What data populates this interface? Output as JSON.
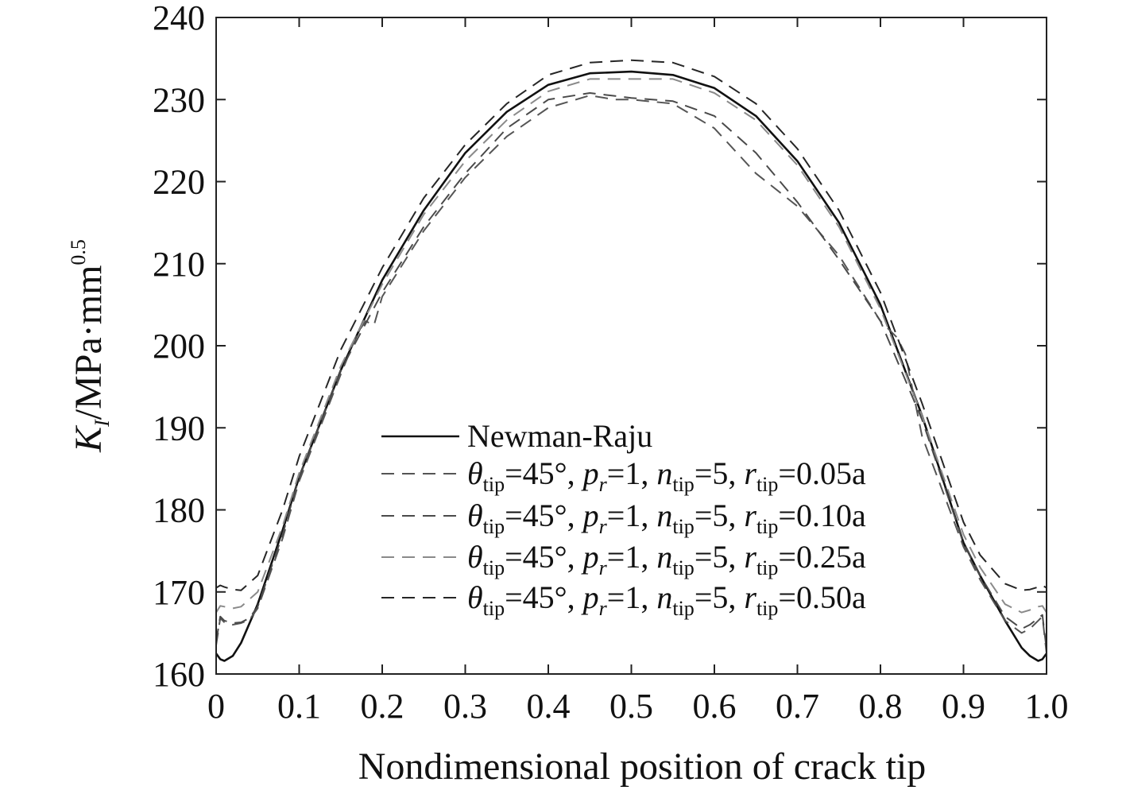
{
  "chart_data": {
    "type": "line",
    "xlabel": "Nondimensional position of crack tip",
    "ylabel": {
      "base": "K",
      "sub": "I",
      "rest": "/MPa·mm",
      "sup": "0.5"
    },
    "xlim": [
      0,
      1.0
    ],
    "ylim": [
      160,
      240
    ],
    "xticks": [
      0,
      0.1,
      0.2,
      0.3,
      0.4,
      0.5,
      0.6,
      0.7,
      0.8,
      0.9,
      1.0
    ],
    "xtick_labels": [
      "0",
      "0.1",
      "0.2",
      "0.3",
      "0.4",
      "0.5",
      "0.6",
      "0.7",
      "0.8",
      "0.9",
      "1.0"
    ],
    "yticks": [
      160,
      170,
      180,
      190,
      200,
      210,
      220,
      230,
      240
    ],
    "ytick_labels": [
      "160",
      "170",
      "180",
      "190",
      "200",
      "210",
      "220",
      "230",
      "240"
    ],
    "grid": false,
    "legend_position": "lower-center",
    "legend": [
      {
        "text": "Newman-Raju"
      },
      {
        "theta": "θ",
        "theta_sub": "tip",
        "eq1": "=45°, ",
        "p": "p",
        "p_sub": "r",
        "eq2": "=1, ",
        "n": "n",
        "n_sub": "tip",
        "eq3": "=5, ",
        "r": "r",
        "r_sub": "tip",
        "eq4": "=0.05a"
      },
      {
        "theta": "θ",
        "theta_sub": "tip",
        "eq1": "=45°, ",
        "p": "p",
        "p_sub": "r",
        "eq2": "=1, ",
        "n": "n",
        "n_sub": "tip",
        "eq3": "=5, ",
        "r": "r",
        "r_sub": "tip",
        "eq4": "=0.10a"
      },
      {
        "theta": "θ",
        "theta_sub": "tip",
        "eq1": "=45°, ",
        "p": "p",
        "p_sub": "r",
        "eq2": "=1, ",
        "n": "n",
        "n_sub": "tip",
        "eq3": "=5, ",
        "r": "r",
        "r_sub": "tip",
        "eq4": "=0.25a"
      },
      {
        "theta": "θ",
        "theta_sub": "tip",
        "eq1": "=45°, ",
        "p": "p",
        "p_sub": "r",
        "eq2": "=1, ",
        "n": "n",
        "n_sub": "tip",
        "eq3": "=5, ",
        "r": "r",
        "r_sub": "tip",
        "eq4": "=0.50a"
      }
    ],
    "series": [
      {
        "name": "Newman-Raju",
        "color": "#111111",
        "style": "solid",
        "x": [
          0,
          0.005,
          0.01,
          0.02,
          0.03,
          0.05,
          0.08,
          0.1,
          0.15,
          0.2,
          0.25,
          0.3,
          0.35,
          0.4,
          0.45,
          0.5,
          0.55,
          0.6,
          0.65,
          0.7,
          0.75,
          0.8,
          0.85,
          0.9,
          0.92,
          0.95,
          0.97,
          0.98,
          0.99,
          0.995,
          1.0
        ],
        "y": [
          162.5,
          161.8,
          161.6,
          162.2,
          163.8,
          168.5,
          177.5,
          184,
          197,
          208,
          216.5,
          223.5,
          228.5,
          231.8,
          233.2,
          233.4,
          233,
          231.4,
          228,
          222.5,
          215,
          205,
          191.5,
          176,
          172,
          166.5,
          163.2,
          162.2,
          161.6,
          161.8,
          162.5
        ]
      },
      {
        "name": "θtip=45°, pr=1, ntip=5, rtip=0.05a",
        "color": "#555555",
        "style": "dashed",
        "x": [
          0,
          0.005,
          0.01,
          0.02,
          0.03,
          0.04,
          0.05,
          0.08,
          0.1,
          0.15,
          0.17,
          0.18,
          0.19,
          0.2,
          0.25,
          0.3,
          0.35,
          0.4,
          0.45,
          0.48,
          0.5,
          0.55,
          0.6,
          0.65,
          0.7,
          0.75,
          0.8,
          0.82,
          0.83,
          0.85,
          0.9,
          0.92,
          0.95,
          0.97,
          0.98,
          0.99,
          0.995,
          1.0
        ],
        "y": [
          163.5,
          166.8,
          166.3,
          166.0,
          166.2,
          166.6,
          168.0,
          176.5,
          183.5,
          196.5,
          201.5,
          203.0,
          202.5,
          206,
          214,
          220.5,
          225.5,
          229,
          230.5,
          230,
          230,
          229.5,
          226.5,
          221,
          217,
          211,
          203,
          201,
          199,
          189,
          175.5,
          171.5,
          166.5,
          165.0,
          165.5,
          166.5,
          167,
          162.5
        ]
      },
      {
        "name": "θtip=45°, pr=1, ntip=5, rtip=0.10a",
        "color": "#4a4a4a",
        "style": "dashed",
        "x": [
          0,
          0.005,
          0.01,
          0.02,
          0.03,
          0.04,
          0.05,
          0.08,
          0.1,
          0.15,
          0.2,
          0.25,
          0.3,
          0.35,
          0.4,
          0.45,
          0.5,
          0.55,
          0.6,
          0.65,
          0.7,
          0.75,
          0.8,
          0.85,
          0.9,
          0.92,
          0.95,
          0.97,
          0.98,
          0.99,
          0.995,
          1.0
        ],
        "y": [
          164,
          167,
          166.5,
          166.2,
          166.3,
          166.8,
          168.2,
          177,
          184,
          197,
          206.5,
          214.5,
          221,
          226.5,
          230,
          230.8,
          230.2,
          229.8,
          228,
          223.5,
          217.5,
          210.5,
          203,
          191,
          176,
          172,
          167,
          165.5,
          166,
          166.8,
          167.2,
          163
        ]
      },
      {
        "name": "θtip=45°, pr=1, ntip=5, rtip=0.25a",
        "color": "#8a8a8a",
        "style": "dashed",
        "x": [
          0,
          0.005,
          0.01,
          0.02,
          0.03,
          0.05,
          0.08,
          0.1,
          0.15,
          0.2,
          0.25,
          0.3,
          0.35,
          0.4,
          0.45,
          0.5,
          0.55,
          0.6,
          0.65,
          0.7,
          0.75,
          0.8,
          0.85,
          0.9,
          0.92,
          0.95,
          0.97,
          0.98,
          0.99,
          0.995,
          1.0
        ],
        "y": [
          167.5,
          168.3,
          168.2,
          168.0,
          168.2,
          170,
          178,
          184.5,
          197.5,
          207.5,
          216,
          222.5,
          227.5,
          231,
          232.5,
          232.5,
          232.5,
          230.8,
          227.5,
          222,
          214.5,
          204.5,
          191.5,
          177,
          173,
          168.5,
          167.5,
          167.8,
          168.2,
          168.3,
          167.5
        ]
      },
      {
        "name": "θtip=45°, pr=1, ntip=5, rtip=0.50a",
        "color": "#262626",
        "style": "dashed",
        "x": [
          0,
          0.005,
          0.01,
          0.02,
          0.03,
          0.05,
          0.08,
          0.1,
          0.15,
          0.2,
          0.25,
          0.3,
          0.35,
          0.4,
          0.45,
          0.5,
          0.55,
          0.6,
          0.65,
          0.7,
          0.75,
          0.8,
          0.85,
          0.9,
          0.92,
          0.95,
          0.97,
          0.98,
          0.99,
          0.995,
          1.0
        ],
        "y": [
          170.5,
          170.8,
          170.6,
          170.3,
          170.2,
          172,
          180,
          186.5,
          199.5,
          209.5,
          218,
          224.5,
          229.5,
          233,
          234.5,
          234.8,
          234.5,
          232.8,
          229.5,
          224,
          216.5,
          206.5,
          193,
          178.5,
          174.5,
          171,
          170.2,
          170.3,
          170.6,
          170.8,
          170.5
        ]
      }
    ]
  }
}
